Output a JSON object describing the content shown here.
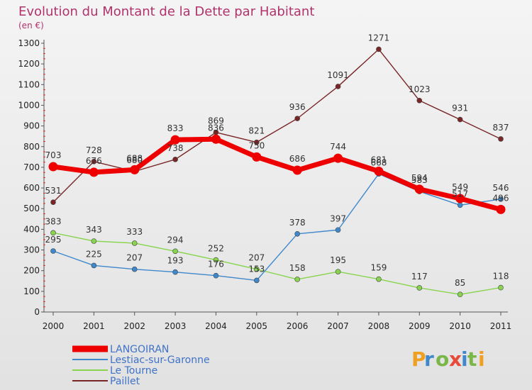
{
  "chart_data": {
    "type": "line",
    "title": "Evolution du Montant de la Dette par Habitant",
    "subtitle": "(en €)",
    "x": [
      "2000",
      "2001",
      "2002",
      "2003",
      "2004",
      "2005",
      "2006",
      "2007",
      "2008",
      "2009",
      "2010",
      "2011"
    ],
    "ylim": [
      0,
      1300
    ],
    "yticks": [
      0,
      100,
      200,
      300,
      400,
      500,
      600,
      700,
      800,
      900,
      1000,
      1100,
      1200,
      1300
    ],
    "grid": false,
    "legend_position": "bottom-left",
    "series": [
      {
        "name": "LANGOIRAN",
        "color": "#ee0000",
        "values": [
          703,
          676,
          688,
          833,
          836,
          750,
          686,
          744,
          681,
          594,
          549,
          496
        ]
      },
      {
        "name": "Lestiac-sur-Garonne",
        "color": "#3f88cc",
        "values": [
          295,
          225,
          207,
          193,
          176,
          153,
          378,
          397,
          668,
          583,
          517,
          546
        ]
      },
      {
        "name": "Le Tourne",
        "color": "#88d44e",
        "values": [
          383,
          343,
          333,
          294,
          252,
          207,
          158,
          195,
          159,
          117,
          85,
          118
        ]
      },
      {
        "name": "Paillet",
        "color": "#7a2626",
        "values": [
          531,
          728,
          680,
          738,
          869,
          821,
          936,
          1091,
          1271,
          1023,
          931,
          837
        ]
      }
    ]
  },
  "logo": {
    "text": "Proxiti"
  }
}
